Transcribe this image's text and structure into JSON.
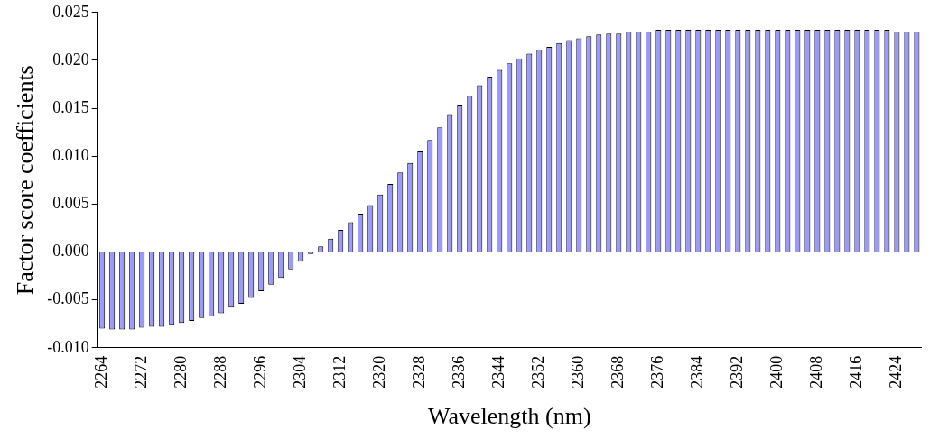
{
  "chart_data": {
    "type": "bar",
    "xlabel": "Wavelength (nm)",
    "ylabel": "Factor score coefficients",
    "categories": [
      "2264",
      null,
      null,
      null,
      "2272",
      null,
      null,
      null,
      "2280",
      null,
      null,
      null,
      "2288",
      null,
      null,
      null,
      "2296",
      null,
      null,
      null,
      "2304",
      null,
      null,
      null,
      "2312",
      null,
      null,
      null,
      "2320",
      null,
      null,
      null,
      "2328",
      null,
      null,
      null,
      "2336",
      null,
      null,
      null,
      "2344",
      null,
      null,
      null,
      "2352",
      null,
      null,
      null,
      "2360",
      null,
      null,
      null,
      "2368",
      null,
      null,
      null,
      "2376",
      null,
      null,
      null,
      "2384",
      null,
      null,
      null,
      "2392",
      null,
      null,
      null,
      "2400",
      null,
      null,
      null,
      "2408",
      null,
      null,
      null,
      "2416",
      null,
      null,
      null,
      "2424",
      null,
      null
    ],
    "values": [
      -0.008,
      -0.0081,
      -0.0081,
      -0.0081,
      -0.0079,
      -0.0078,
      -0.0078,
      -0.0076,
      -0.0074,
      -0.0072,
      -0.0069,
      -0.0067,
      -0.0064,
      -0.0058,
      -0.0054,
      -0.0048,
      -0.0041,
      -0.0034,
      -0.0027,
      -0.0018,
      -0.001,
      -0.0002,
      0.0006,
      0.0014,
      0.0023,
      0.0031,
      0.004,
      0.0049,
      0.006,
      0.0071,
      0.0083,
      0.0093,
      0.0105,
      0.0117,
      0.013,
      0.0143,
      0.0153,
      0.0163,
      0.0174,
      0.0183,
      0.019,
      0.0197,
      0.0202,
      0.0207,
      0.0211,
      0.0214,
      0.0218,
      0.0221,
      0.0223,
      0.0225,
      0.0227,
      0.0228,
      0.0228,
      0.023,
      0.023,
      0.023,
      0.0232,
      0.0232,
      0.0232,
      0.0232,
      0.0232,
      0.0232,
      0.0232,
      0.0232,
      0.0232,
      0.0232,
      0.0232,
      0.0232,
      0.0232,
      0.0232,
      0.0232,
      0.0232,
      0.0232,
      0.0232,
      0.0232,
      0.0232,
      0.0232,
      0.0232,
      0.0232,
      0.0232,
      0.023,
      0.023,
      0.023
    ],
    "color": "#9999ff",
    "ylim": [
      -0.01,
      0.025
    ],
    "yticks": [
      {
        "value": -0.01,
        "label": "-0.010"
      },
      {
        "value": -0.005,
        "label": "-0.005"
      },
      {
        "value": 0,
        "label": "0.000"
      },
      {
        "value": 0.005,
        "label": "0.005"
      },
      {
        "value": 0.01,
        "label": "0.010"
      },
      {
        "value": 0.015,
        "label": "0.015"
      },
      {
        "value": 0.02,
        "label": "0.020"
      },
      {
        "value": 0.025,
        "label": "0.025"
      }
    ],
    "grid": false,
    "legend": false
  }
}
